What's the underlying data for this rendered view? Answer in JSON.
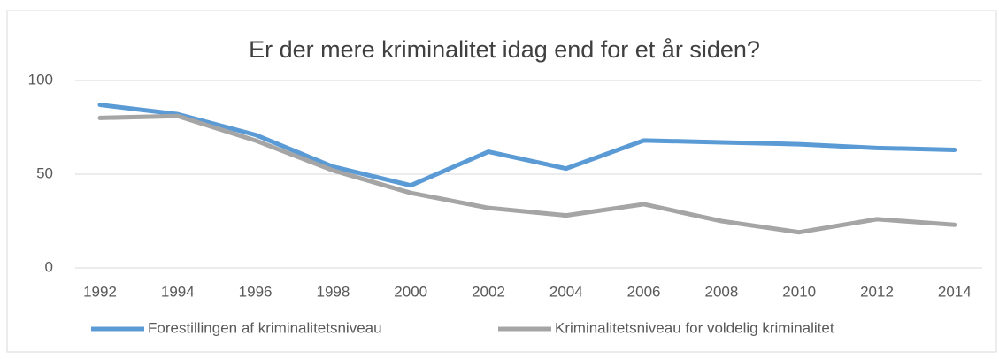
{
  "chart_data": {
    "type": "line",
    "title": "Er der mere kriminalitet idag end for et år siden?",
    "categories": [
      "1992",
      "1994",
      "1996",
      "1998",
      "2000",
      "2002",
      "2004",
      "2006",
      "2008",
      "2010",
      "2012",
      "2014"
    ],
    "series": [
      {
        "name": "Forestillingen af kriminalitetsniveau",
        "color": "#5b9bd5",
        "values": [
          87,
          82,
          71,
          54,
          44,
          62,
          53,
          68,
          67,
          66,
          64,
          63
        ]
      },
      {
        "name": "Kriminalitetsniveau for voldelig kriminalitet",
        "color": "#a5a5a5",
        "values": [
          80,
          81,
          68,
          52,
          40,
          32,
          28,
          34,
          25,
          19,
          26,
          23
        ]
      }
    ],
    "ylim": [
      0,
      100
    ],
    "yticks": [
      0,
      50,
      100
    ],
    "grid": true,
    "legend": "bottom"
  }
}
